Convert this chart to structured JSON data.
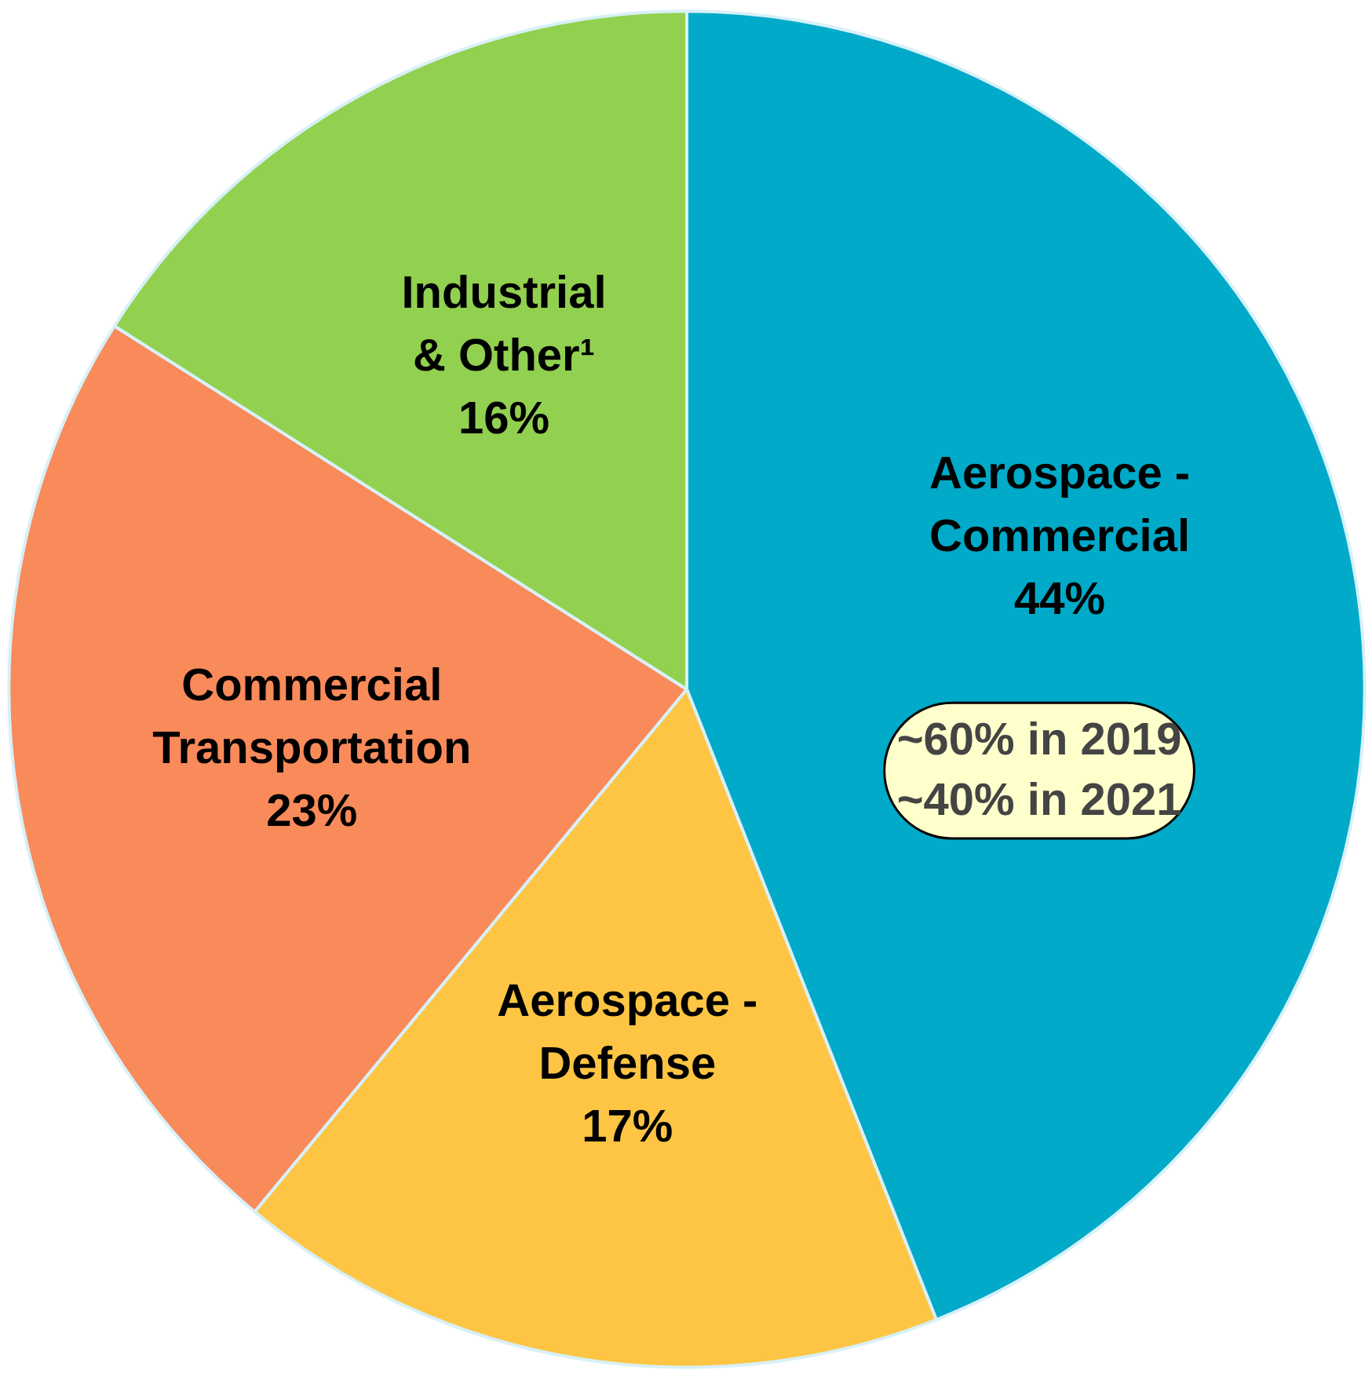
{
  "chart_data": {
    "type": "pie",
    "categories": [
      "Aerospace - Commercial",
      "Aerospace - Defense",
      "Commercial Transportation",
      "Industrial & Other¹"
    ],
    "values": [
      44,
      17,
      23,
      16
    ],
    "colors": [
      "#00aac8",
      "#fdc543",
      "#f98a5a",
      "#92d050"
    ],
    "value_labels": [
      "44%",
      "17%",
      "23%",
      "16%"
    ],
    "annotations": [
      "~60% in 2019\n~40% in 2021"
    ]
  }
}
